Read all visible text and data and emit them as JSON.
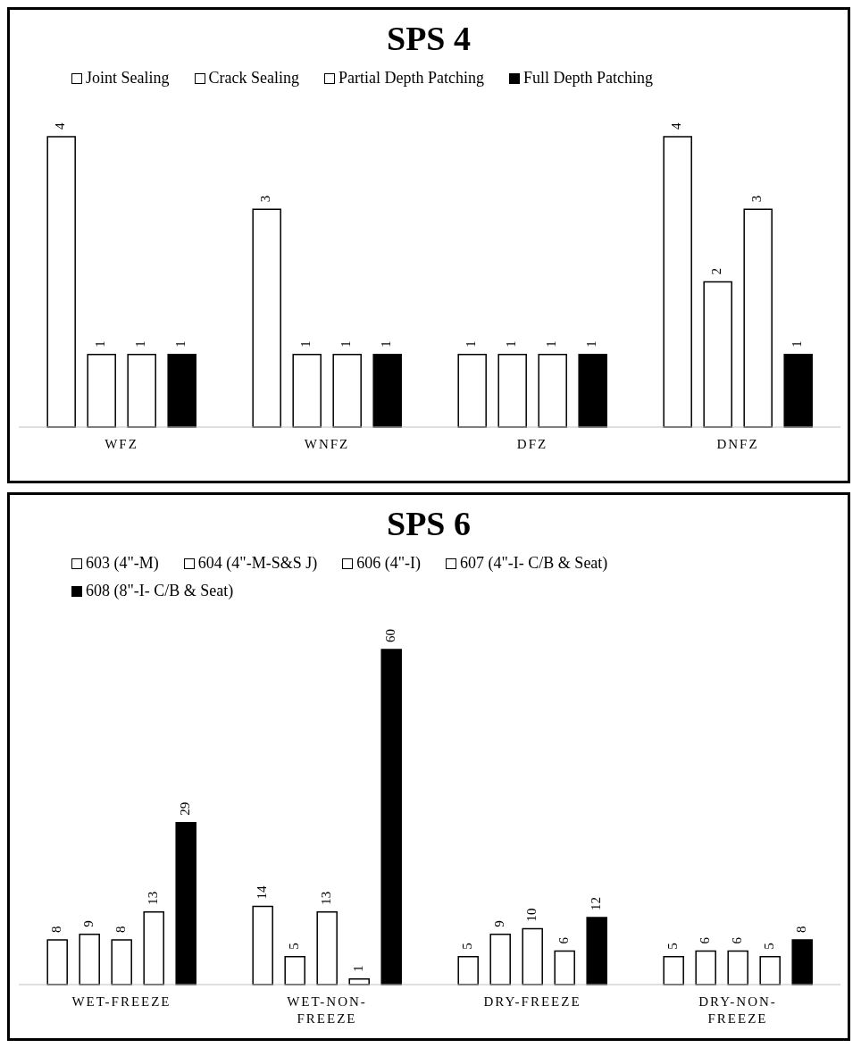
{
  "chart_data": [
    {
      "type": "bar",
      "title": "SPS 4",
      "categories": [
        "WFZ",
        "WNFZ",
        "DFZ",
        "DNFZ"
      ],
      "series": [
        {
          "name": "Joint Sealing",
          "color": "#ffffff",
          "values": [
            4,
            3,
            1,
            4
          ]
        },
        {
          "name": "Crack Sealing",
          "color": "#ffffff",
          "values": [
            1,
            1,
            1,
            2
          ]
        },
        {
          "name": "Partial Depth Patching",
          "color": "#ffffff",
          "values": [
            1,
            1,
            1,
            3
          ]
        },
        {
          "name": "Full Depth Patching",
          "color": "#000000",
          "values": [
            1,
            1,
            1,
            1
          ]
        }
      ],
      "data_labels": true,
      "legend": "top"
    },
    {
      "type": "bar",
      "title": "SPS 6",
      "categories": [
        "WET-FREEZE",
        "WET-NON-FREEZE",
        "DRY-FREEZE",
        "DRY-NON-FREEZE"
      ],
      "series": [
        {
          "name": "603 (4\"-M)",
          "color": "#ffffff",
          "values": [
            8,
            14,
            5,
            5
          ]
        },
        {
          "name": "604 (4\"-M-S&S J)",
          "color": "#ffffff",
          "values": [
            9,
            5,
            9,
            6
          ]
        },
        {
          "name": "606 (4\"-I)",
          "color": "#ffffff",
          "values": [
            8,
            13,
            10,
            6
          ]
        },
        {
          "name": "607 (4\"-I- C/B & Seat)",
          "color": "#ffffff",
          "values": [
            13,
            1,
            6,
            5
          ]
        },
        {
          "name": "608 (8\"-I- C/B & Seat)",
          "color": "#000000",
          "values": [
            29,
            60,
            12,
            8
          ]
        }
      ],
      "data_labels": true,
      "legend": "top"
    }
  ]
}
